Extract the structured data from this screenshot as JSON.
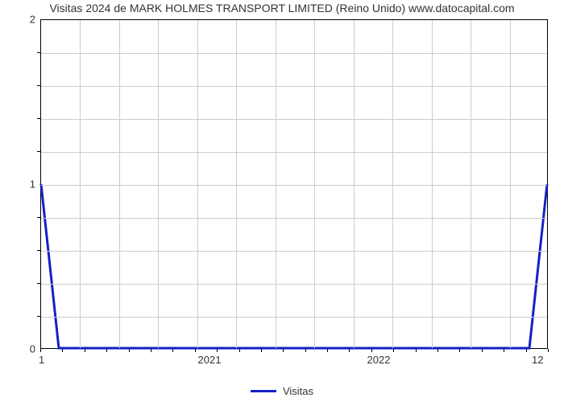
{
  "chart": {
    "type": "line",
    "title": "Visitas 2024 de MARK HOLMES TRANSPORT LIMITED (Reino Unido) www.datocapital.com",
    "title_fontsize": 14,
    "background_color": "#ffffff",
    "plot_border_color": "#000000",
    "grid_color": "#cccccc",
    "line_color": "#1420c6",
    "line_width": 3,
    "x_axis": {
      "range_start": 2020,
      "range_end_label": "202",
      "major_ticks": [
        2021,
        2022
      ],
      "left_corner_label": "1",
      "right_corner_label": "12",
      "minor_tick_count": 23
    },
    "y_axis": {
      "min": 0,
      "max": 2,
      "major_ticks": [
        0,
        1,
        2
      ],
      "minor_per_major": 5
    },
    "data_points": [
      {
        "x": 0.0,
        "y": 1.0
      },
      {
        "x": 0.035,
        "y": 0.0
      },
      {
        "x": 0.965,
        "y": 0.0
      },
      {
        "x": 1.0,
        "y": 1.0
      }
    ],
    "legend": {
      "label": "Visitas",
      "swatch_color": "#1420c6",
      "swatch_width": 32,
      "swatch_thickness": 3
    }
  }
}
